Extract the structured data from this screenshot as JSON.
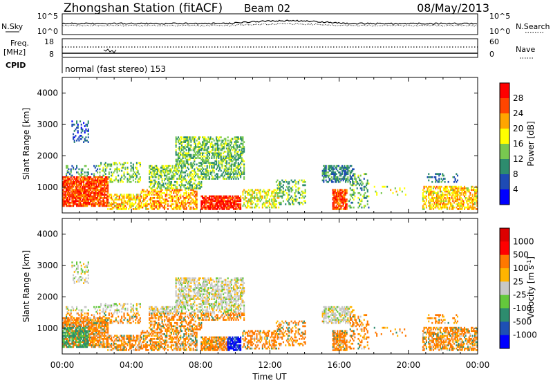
{
  "header": {
    "title": "Zhongshan Station (fitACF)",
    "beam": "Beam 02",
    "date": "08/May/2013"
  },
  "nsky_panel": {
    "left_label": "N.Sky",
    "left_ticks": [
      "10^5",
      "10^0"
    ],
    "right_label": "N.Search",
    "right_ticks": [
      "10^5",
      "10^0"
    ]
  },
  "freq_panel": {
    "left_label_1": "Freq.",
    "left_label_2": "[MHz]",
    "left_ticks": [
      "18",
      "8"
    ],
    "right_label": "Nave",
    "right_ticks": [
      "60",
      "0"
    ]
  },
  "cpid": {
    "label": "CPID",
    "text": "normal (fast stereo) 153"
  },
  "chart_data": [
    {
      "type": "heatmap",
      "title": "",
      "xlabel": "",
      "ylabel": "Slant Range [km]",
      "xlim": [
        0,
        24
      ],
      "ylim": [
        180,
        4500
      ],
      "yticks": [
        "1000",
        "2000",
        "3000",
        "4000"
      ],
      "colorbar": {
        "label": "Power [dB]",
        "ticks": [
          "4",
          "8",
          "12",
          "16",
          "20",
          "24",
          "28"
        ],
        "colors": [
          "#0000ff",
          "#1e4bb4",
          "#2d8c6e",
          "#78c850",
          "#ffff00",
          "#ffa500",
          "#ff4500",
          "#ff0000"
        ],
        "range": [
          0,
          32
        ]
      }
    },
    {
      "type": "heatmap",
      "title": "",
      "xlabel": "Time UT",
      "ylabel": "Slant Range [km]",
      "xlim": [
        0,
        24
      ],
      "ylim": [
        180,
        4500
      ],
      "yticks": [
        "1000",
        "2000",
        "3000",
        "4000"
      ],
      "xticks": [
        "00:00",
        "04:00",
        "08:00",
        "12:00",
        "16:00",
        "20:00",
        "00:00"
      ],
      "colorbar": {
        "label": "Velocity [m s",
        "label_sup": "-1",
        "label_end": "]",
        "ticks": [
          "1000",
          "500",
          "100",
          "25",
          "-25",
          "-100",
          "-500",
          "-1000"
        ],
        "colors": [
          "#0000ff",
          "#1e50b4",
          "#2d8c6e",
          "#64c83c",
          "#c8c8c8",
          "#ffb400",
          "#ff7800",
          "#ff0000",
          "#dc0000"
        ]
      }
    }
  ]
}
